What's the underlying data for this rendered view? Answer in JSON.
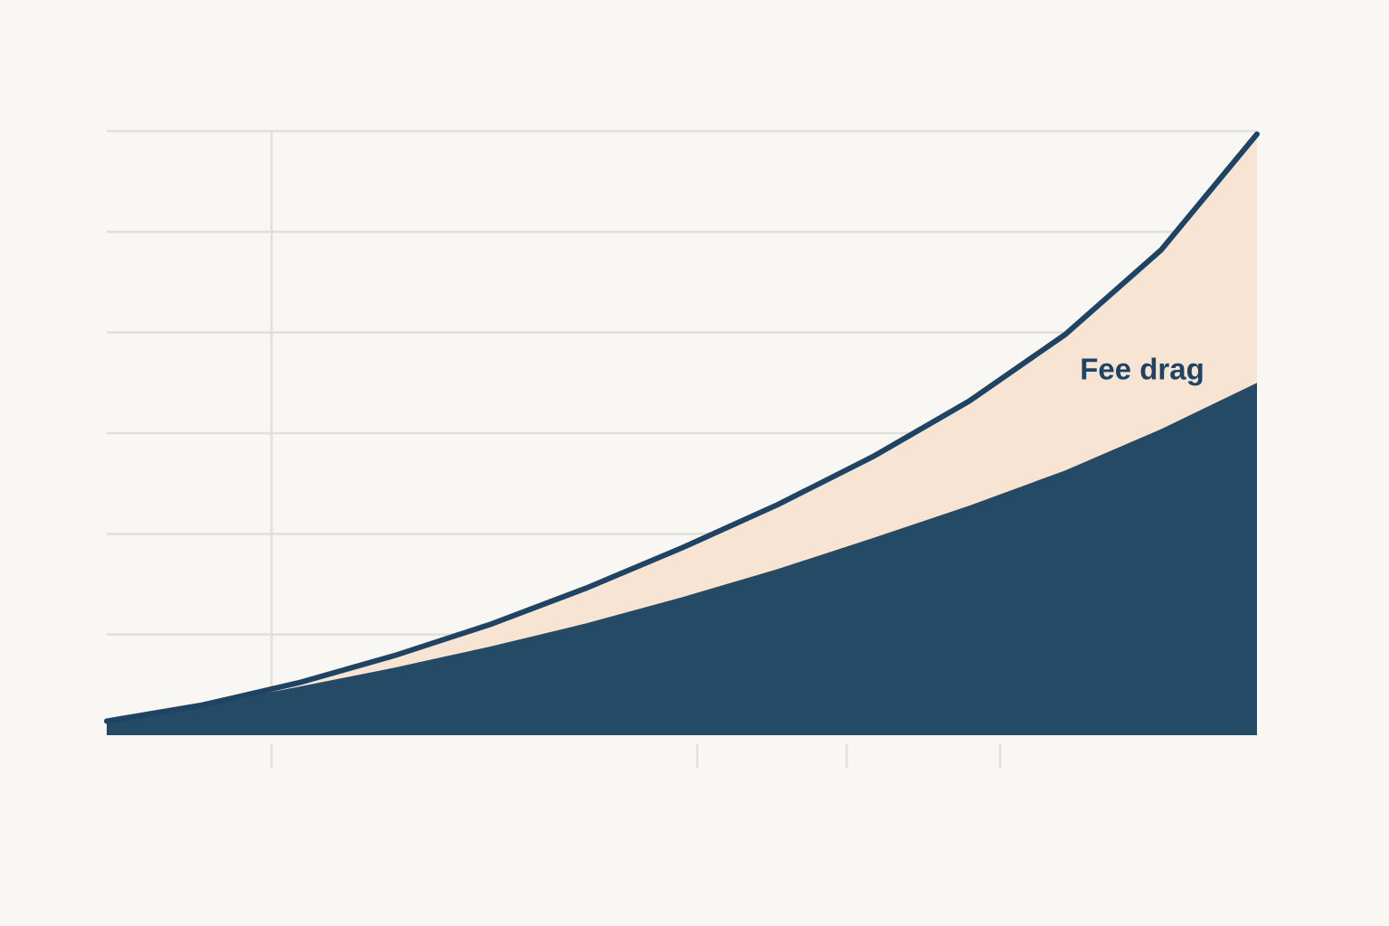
{
  "chart_data": {
    "type": "area",
    "annotation": "Fee drag",
    "x": [
      0,
      2.5,
      5,
      7.5,
      10,
      12.5,
      15,
      17.5,
      20,
      22.5,
      25,
      27.5,
      30
    ],
    "series": [
      {
        "color": "#1f4463",
        "fill": "#f7e4d2",
        "values": [
          0.14,
          0.3,
          0.52,
          0.79,
          1.1,
          1.46,
          1.86,
          2.29,
          2.77,
          3.32,
          3.98,
          4.82,
          5.97
        ]
      },
      {
        "color": "#244a66",
        "values": [
          0.14,
          0.3,
          0.48,
          0.67,
          0.88,
          1.11,
          1.37,
          1.65,
          1.96,
          2.28,
          2.63,
          3.04,
          3.5
        ]
      }
    ],
    "xlim": [
      0,
      30
    ],
    "xticks": [
      4.3,
      15.4,
      19.3,
      23.3
    ],
    "ylim": [
      0,
      6
    ],
    "yticks": [
      1,
      2,
      3,
      4,
      5,
      6
    ],
    "grid": true
  }
}
